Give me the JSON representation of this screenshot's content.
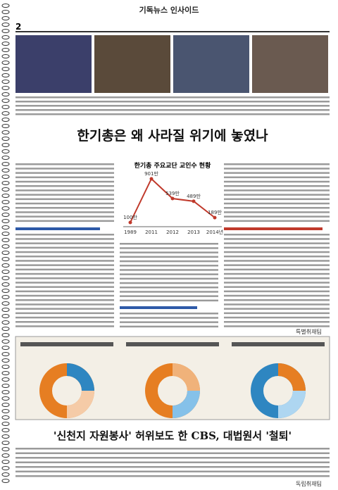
{
  "header": {
    "section": "기독뉴스 인사이드",
    "page": "2"
  },
  "article1": {
    "headline": "한기총은 왜 사라질 위기에 놓였나",
    "byline": "특별취재팀",
    "chart": {
      "type": "line",
      "title": "한기총 주요교단 교인수 현황",
      "categories": [
        "1989",
        "2011",
        "2012",
        "2013",
        "2014년"
      ],
      "values": [
        100,
        901,
        539,
        489,
        189
      ],
      "value_labels": [
        "100만",
        "901만",
        "539만",
        "489만",
        "189만"
      ],
      "color": "#c0392b"
    }
  },
  "article2": {
    "headline": "'신천지 자원봉사' 허위보도 한 CBS, 대법원서 '철퇴'",
    "byline": "독립취재팀"
  }
}
